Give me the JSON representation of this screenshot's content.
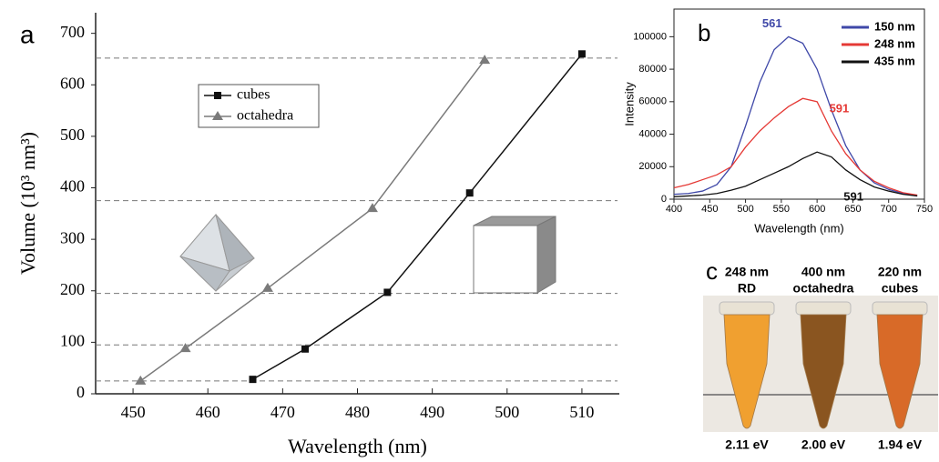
{
  "chart_data": [
    {
      "type": "line",
      "panel": "a",
      "xlabel": "Wavelength (nm)",
      "ylabel": "Volume (10³ nm³)",
      "xlim": [
        445,
        515
      ],
      "xticks": [
        450,
        460,
        470,
        480,
        490,
        500,
        510
      ],
      "ylim": [
        0,
        740
      ],
      "yticks": [
        0,
        100,
        200,
        300,
        400,
        500,
        600,
        700
      ],
      "hlines": [
        25,
        95,
        195,
        375,
        652
      ],
      "legend": "upper left",
      "series": [
        {
          "name": "cubes",
          "color": "#111111",
          "marker": "square",
          "x": [
            466,
            473,
            484,
            495,
            510
          ],
          "values": [
            28,
            87,
            197,
            390,
            660
          ]
        },
        {
          "name": "octahedra",
          "color": "#7a7a7a",
          "marker": "triangle",
          "x": [
            451,
            457,
            468,
            482,
            497
          ],
          "values": [
            25,
            88,
            205,
            360,
            648
          ]
        }
      ]
    },
    {
      "type": "line",
      "panel": "b",
      "xlabel": "Wavelength (nm)",
      "ylabel": "Intensity",
      "xlim": [
        400,
        750
      ],
      "xticks": [
        400,
        450,
        500,
        550,
        600,
        650,
        700,
        750
      ],
      "ylim": [
        0,
        117000
      ],
      "yticks": [
        0,
        20000,
        40000,
        60000,
        80000,
        100000
      ],
      "legend": "upper right",
      "x": [
        400,
        420,
        440,
        460,
        480,
        500,
        520,
        540,
        560,
        580,
        600,
        620,
        640,
        660,
        680,
        700,
        720,
        740
      ],
      "series": [
        {
          "name": "150 nm",
          "color": "#3f48a8",
          "peak_label": "561",
          "values": [
            3000,
            3500,
            5000,
            9000,
            20000,
            45000,
            72000,
            92000,
            100000,
            96000,
            80000,
            55000,
            33000,
            18000,
            10000,
            6000,
            3500,
            2000
          ]
        },
        {
          "name": "248 nm",
          "color": "#e53935",
          "peak_label": "591",
          "values": [
            7000,
            9000,
            12000,
            15000,
            20000,
            32000,
            42000,
            50000,
            57000,
            62000,
            60000,
            42000,
            28000,
            18000,
            11000,
            7000,
            4000,
            2500
          ]
        },
        {
          "name": "435 nm",
          "color": "#111111",
          "peak_label": "591",
          "values": [
            1500,
            2000,
            2500,
            3500,
            5500,
            8000,
            12000,
            16000,
            20000,
            25000,
            29000,
            26000,
            18000,
            12000,
            7500,
            5000,
            3000,
            2000
          ]
        }
      ]
    }
  ],
  "photo": {
    "panel": "c",
    "samples": [
      {
        "size": "248 nm",
        "shape": "RD",
        "energy": "2.11 eV",
        "color": "#f0a030"
      },
      {
        "size": "400 nm",
        "shape": "octahedra",
        "energy": "2.00 eV",
        "color": "#8a5520"
      },
      {
        "size": "220 nm",
        "shape": "cubes",
        "energy": "1.94 eV",
        "color": "#d86a28"
      }
    ]
  }
}
